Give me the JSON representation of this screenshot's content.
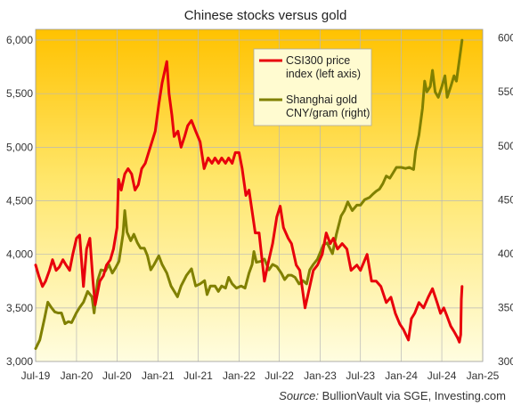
{
  "chart_data": {
    "type": "line",
    "title": "Chinese stocks versus gold",
    "source": "Source: BullionVault via SGE, Investing.com",
    "x_ticks": [
      "Jul-19",
      "Jan-20",
      "Jul-20",
      "Jan-21",
      "Jul-21",
      "Jan-22",
      "Jul-22",
      "Jan-23",
      "Jul-23",
      "Jan-24",
      "Jul-24",
      "Jan-25"
    ],
    "xlim": [
      "2019-07",
      "2025-01"
    ],
    "y_left": {
      "ticks": [
        "3,000",
        "3,500",
        "4,000",
        "4,500",
        "5,000",
        "5,500",
        "6,000"
      ],
      "ylim": [
        3000,
        6100
      ]
    },
    "y_right": {
      "ticks": [
        "300",
        "350",
        "400",
        "450",
        "500",
        "550",
        "600"
      ],
      "ylim": [
        300,
        608
      ]
    },
    "grid": true,
    "legend_position": "top-right",
    "series": [
      {
        "name": "CSI300 price index (left axis)",
        "axis": "left",
        "color": "#e8000b",
        "points": [
          [
            "2019-07-01",
            3900
          ],
          [
            "2019-07-15",
            3800
          ],
          [
            "2019-08-01",
            3700
          ],
          [
            "2019-08-15",
            3750
          ],
          [
            "2019-09-01",
            3850
          ],
          [
            "2019-09-15",
            3950
          ],
          [
            "2019-10-01",
            3850
          ],
          [
            "2019-10-15",
            3880
          ],
          [
            "2019-11-01",
            3950
          ],
          [
            "2019-11-15",
            3900
          ],
          [
            "2019-12-01",
            3850
          ],
          [
            "2019-12-15",
            4000
          ],
          [
            "2020-01-01",
            4150
          ],
          [
            "2020-01-15",
            4180
          ],
          [
            "2020-02-01",
            3700
          ],
          [
            "2020-02-15",
            4050
          ],
          [
            "2020-03-01",
            4150
          ],
          [
            "2020-03-15",
            3750
          ],
          [
            "2020-03-25",
            3530
          ],
          [
            "2020-04-15",
            3750
          ],
          [
            "2020-05-01",
            3800
          ],
          [
            "2020-05-15",
            3900
          ],
          [
            "2020-06-01",
            3950
          ],
          [
            "2020-06-15",
            4050
          ],
          [
            "2020-07-01",
            4250
          ],
          [
            "2020-07-08",
            4700
          ],
          [
            "2020-07-20",
            4600
          ],
          [
            "2020-08-05",
            4750
          ],
          [
            "2020-08-20",
            4800
          ],
          [
            "2020-09-05",
            4750
          ],
          [
            "2020-09-20",
            4600
          ],
          [
            "2020-10-05",
            4650
          ],
          [
            "2020-10-20",
            4800
          ],
          [
            "2020-11-05",
            4850
          ],
          [
            "2020-11-20",
            4950
          ],
          [
            "2020-12-05",
            5050
          ],
          [
            "2020-12-20",
            5150
          ],
          [
            "2021-01-05",
            5400
          ],
          [
            "2021-01-20",
            5600
          ],
          [
            "2021-02-10",
            5800
          ],
          [
            "2021-02-20",
            5500
          ],
          [
            "2021-03-05",
            5300
          ],
          [
            "2021-03-15",
            5100
          ],
          [
            "2021-04-01",
            5150
          ],
          [
            "2021-04-15",
            5000
          ],
          [
            "2021-05-01",
            5100
          ],
          [
            "2021-05-15",
            5200
          ],
          [
            "2021-06-01",
            5250
          ],
          [
            "2021-06-20",
            5150
          ],
          [
            "2021-07-10",
            5050
          ],
          [
            "2021-07-28",
            4800
          ],
          [
            "2021-08-15",
            4900
          ],
          [
            "2021-09-01",
            4850
          ],
          [
            "2021-09-15",
            4900
          ],
          [
            "2021-10-01",
            4850
          ],
          [
            "2021-10-15",
            4900
          ],
          [
            "2021-11-01",
            4850
          ],
          [
            "2021-11-15",
            4900
          ],
          [
            "2021-12-01",
            4850
          ],
          [
            "2021-12-15",
            4950
          ],
          [
            "2022-01-01",
            4950
          ],
          [
            "2022-01-15",
            4800
          ],
          [
            "2022-02-01",
            4550
          ],
          [
            "2022-02-15",
            4600
          ],
          [
            "2022-03-01",
            4400
          ],
          [
            "2022-03-15",
            4200
          ],
          [
            "2022-04-01",
            4200
          ],
          [
            "2022-04-25",
            3750
          ],
          [
            "2022-05-10",
            3900
          ],
          [
            "2022-06-01",
            4100
          ],
          [
            "2022-06-20",
            4350
          ],
          [
            "2022-07-05",
            4450
          ],
          [
            "2022-07-20",
            4250
          ],
          [
            "2022-08-10",
            4150
          ],
          [
            "2022-08-25",
            4100
          ],
          [
            "2022-09-15",
            3900
          ],
          [
            "2022-10-01",
            3850
          ],
          [
            "2022-10-25",
            3500
          ],
          [
            "2022-11-15",
            3700
          ],
          [
            "2022-12-01",
            3850
          ],
          [
            "2022-12-20",
            3900
          ],
          [
            "2023-01-10",
            4000
          ],
          [
            "2023-01-28",
            4200
          ],
          [
            "2023-02-15",
            4100
          ],
          [
            "2023-03-01",
            4150
          ],
          [
            "2023-03-20",
            4050
          ],
          [
            "2023-04-10",
            4100
          ],
          [
            "2023-05-01",
            4050
          ],
          [
            "2023-05-20",
            3850
          ],
          [
            "2023-06-15",
            3900
          ],
          [
            "2023-07-01",
            3850
          ],
          [
            "2023-07-31",
            4000
          ],
          [
            "2023-08-20",
            3750
          ],
          [
            "2023-09-10",
            3750
          ],
          [
            "2023-10-01",
            3700
          ],
          [
            "2023-10-25",
            3550
          ],
          [
            "2023-11-15",
            3600
          ],
          [
            "2023-12-05",
            3450
          ],
          [
            "2023-12-25",
            3350
          ],
          [
            "2024-01-10",
            3300
          ],
          [
            "2024-02-02",
            3200
          ],
          [
            "2024-02-15",
            3400
          ],
          [
            "2024-03-01",
            3450
          ],
          [
            "2024-03-20",
            3550
          ],
          [
            "2024-04-10",
            3500
          ],
          [
            "2024-05-01",
            3600
          ],
          [
            "2024-05-20",
            3680
          ],
          [
            "2024-06-10",
            3550
          ],
          [
            "2024-06-25",
            3450
          ],
          [
            "2024-07-10",
            3500
          ],
          [
            "2024-07-25",
            3420
          ],
          [
            "2024-08-10",
            3330
          ],
          [
            "2024-08-25",
            3280
          ],
          [
            "2024-09-10",
            3220
          ],
          [
            "2024-09-18",
            3180
          ],
          [
            "2024-09-24",
            3250
          ],
          [
            "2024-09-27",
            3580
          ],
          [
            "2024-09-30",
            3700
          ]
        ]
      },
      {
        "name": "Shanghai gold CNY/gram (right)",
        "axis": "right",
        "color": "#808000",
        "points": [
          [
            "2019-07-01",
            312
          ],
          [
            "2019-07-20",
            320
          ],
          [
            "2019-08-10",
            340
          ],
          [
            "2019-08-25",
            355
          ],
          [
            "2019-09-10",
            350
          ],
          [
            "2019-09-25",
            346
          ],
          [
            "2019-10-10",
            345
          ],
          [
            "2019-10-25",
            345
          ],
          [
            "2019-11-10",
            335
          ],
          [
            "2019-11-25",
            337
          ],
          [
            "2019-12-10",
            336
          ],
          [
            "2019-12-31",
            345
          ],
          [
            "2020-01-15",
            350
          ],
          [
            "2020-02-01",
            355
          ],
          [
            "2020-02-20",
            365
          ],
          [
            "2020-03-10",
            360
          ],
          [
            "2020-03-20",
            345
          ],
          [
            "2020-04-05",
            375
          ],
          [
            "2020-04-20",
            385
          ],
          [
            "2020-05-10",
            384
          ],
          [
            "2020-05-25",
            390
          ],
          [
            "2020-06-10",
            382
          ],
          [
            "2020-06-25",
            387
          ],
          [
            "2020-07-10",
            393
          ],
          [
            "2020-07-28",
            418
          ],
          [
            "2020-08-05",
            440
          ],
          [
            "2020-08-15",
            420
          ],
          [
            "2020-09-01",
            412
          ],
          [
            "2020-09-15",
            418
          ],
          [
            "2020-10-01",
            410
          ],
          [
            "2020-10-15",
            405
          ],
          [
            "2020-11-01",
            405
          ],
          [
            "2020-11-15",
            398
          ],
          [
            "2020-11-30",
            385
          ],
          [
            "2020-12-15",
            390
          ],
          [
            "2021-01-05",
            398
          ],
          [
            "2021-01-20",
            390
          ],
          [
            "2021-02-10",
            382
          ],
          [
            "2021-03-01",
            370
          ],
          [
            "2021-03-30",
            360
          ],
          [
            "2021-04-15",
            370
          ],
          [
            "2021-05-10",
            380
          ],
          [
            "2021-06-01",
            386
          ],
          [
            "2021-06-20",
            370
          ],
          [
            "2021-07-10",
            372
          ],
          [
            "2021-07-30",
            375
          ],
          [
            "2021-08-10",
            362
          ],
          [
            "2021-08-25",
            370
          ],
          [
            "2021-09-15",
            370
          ],
          [
            "2021-09-30",
            365
          ],
          [
            "2021-10-15",
            370
          ],
          [
            "2021-11-01",
            368
          ],
          [
            "2021-11-15",
            378
          ],
          [
            "2021-12-01",
            372
          ],
          [
            "2021-12-20",
            368
          ],
          [
            "2022-01-10",
            370
          ],
          [
            "2022-01-28",
            368
          ],
          [
            "2022-02-15",
            382
          ],
          [
            "2022-03-01",
            390
          ],
          [
            "2022-03-09",
            402
          ],
          [
            "2022-03-20",
            392
          ],
          [
            "2022-04-10",
            393
          ],
          [
            "2022-04-25",
            395
          ],
          [
            "2022-05-15",
            385
          ],
          [
            "2022-06-01",
            390
          ],
          [
            "2022-06-20",
            388
          ],
          [
            "2022-07-10",
            382
          ],
          [
            "2022-07-25",
            376
          ],
          [
            "2022-08-10",
            380
          ],
          [
            "2022-08-25",
            380
          ],
          [
            "2022-09-10",
            378
          ],
          [
            "2022-09-28",
            372
          ],
          [
            "2022-10-15",
            375
          ],
          [
            "2022-11-01",
            372
          ],
          [
            "2022-11-15",
            385
          ],
          [
            "2022-12-01",
            390
          ],
          [
            "2022-12-20",
            395
          ],
          [
            "2023-01-15",
            408
          ],
          [
            "2023-02-01",
            410
          ],
          [
            "2023-02-25",
            400
          ],
          [
            "2023-03-15",
            418
          ],
          [
            "2023-04-05",
            435
          ],
          [
            "2023-04-20",
            440
          ],
          [
            "2023-05-05",
            448
          ],
          [
            "2023-05-25",
            440
          ],
          [
            "2023-06-15",
            445
          ],
          [
            "2023-07-01",
            445
          ],
          [
            "2023-07-20",
            450
          ],
          [
            "2023-08-10",
            452
          ],
          [
            "2023-08-25",
            455
          ],
          [
            "2023-09-10",
            458
          ],
          [
            "2023-09-25",
            460
          ],
          [
            "2023-10-10",
            465
          ],
          [
            "2023-10-25",
            472
          ],
          [
            "2023-11-10",
            470
          ],
          [
            "2023-11-25",
            475
          ],
          [
            "2023-12-10",
            480
          ],
          [
            "2024-01-01",
            480
          ],
          [
            "2024-01-20",
            479
          ],
          [
            "2024-02-05",
            480
          ],
          [
            "2024-02-25",
            478
          ],
          [
            "2024-03-05",
            495
          ],
          [
            "2024-03-20",
            510
          ],
          [
            "2024-04-05",
            535
          ],
          [
            "2024-04-15",
            560
          ],
          [
            "2024-04-25",
            550
          ],
          [
            "2024-05-10",
            555
          ],
          [
            "2024-05-20",
            570
          ],
          [
            "2024-06-01",
            550
          ],
          [
            "2024-06-15",
            545
          ],
          [
            "2024-07-01",
            555
          ],
          [
            "2024-07-15",
            565
          ],
          [
            "2024-07-25",
            545
          ],
          [
            "2024-08-10",
            555
          ],
          [
            "2024-08-25",
            565
          ],
          [
            "2024-09-05",
            560
          ],
          [
            "2024-09-15",
            575
          ],
          [
            "2024-09-25",
            590
          ],
          [
            "2024-09-30",
            598
          ]
        ]
      }
    ]
  }
}
